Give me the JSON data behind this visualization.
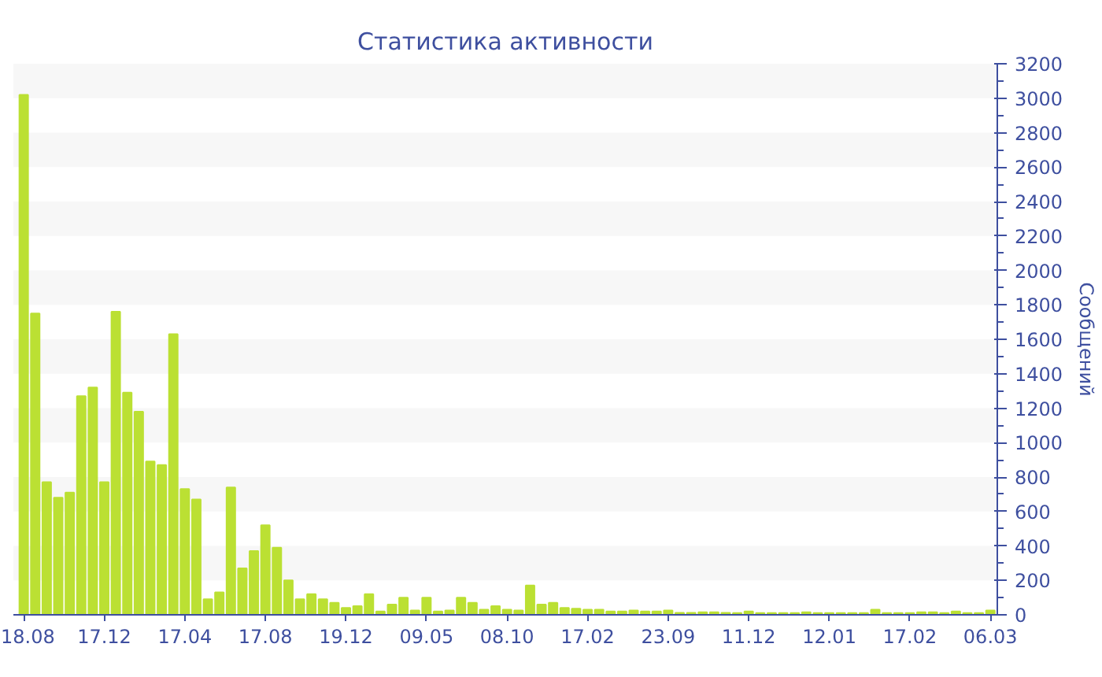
{
  "chart_data": {
    "type": "bar",
    "title": "Статистика активности",
    "ylabel": "Сообщений",
    "categories": [
      "18.08",
      null,
      null,
      null,
      null,
      null,
      null,
      "17.12",
      null,
      null,
      null,
      null,
      null,
      null,
      "17.04",
      null,
      null,
      null,
      null,
      null,
      null,
      "17.08",
      null,
      null,
      null,
      null,
      null,
      null,
      "19.12",
      null,
      null,
      null,
      null,
      null,
      null,
      "09.05",
      null,
      null,
      null,
      null,
      null,
      null,
      "08.10",
      null,
      null,
      null,
      null,
      null,
      null,
      "17.02",
      null,
      null,
      null,
      null,
      null,
      null,
      "23.09",
      null,
      null,
      null,
      null,
      null,
      null,
      "11.12",
      null,
      null,
      null,
      null,
      null,
      null,
      "12.01",
      null,
      null,
      null,
      null,
      null,
      null,
      "17.02",
      null,
      null,
      null,
      null,
      null,
      null,
      "06.03"
    ],
    "values": [
      3020,
      1750,
      770,
      680,
      710,
      1270,
      1320,
      770,
      1760,
      1290,
      1180,
      890,
      870,
      1630,
      730,
      670,
      90,
      130,
      740,
      270,
      370,
      520,
      390,
      200,
      90,
      120,
      90,
      70,
      40,
      50,
      120,
      20,
      60,
      100,
      25,
      100,
      20,
      25,
      100,
      70,
      30,
      50,
      30,
      25,
      170,
      60,
      70,
      40,
      35,
      30,
      30,
      20,
      20,
      25,
      20,
      20,
      25,
      12,
      12,
      15,
      15,
      12,
      10,
      20,
      10,
      10,
      10,
      10,
      15,
      10,
      10,
      10,
      10,
      10,
      30,
      10,
      10,
      10,
      15,
      15,
      10,
      20,
      10,
      10,
      25
    ],
    "color": "#bbe033",
    "ylim": [
      0,
      3200
    ],
    "yticks": [
      0,
      200,
      400,
      600,
      800,
      1000,
      1200,
      1400,
      1600,
      1800,
      2000,
      2200,
      2400,
      2600,
      2800,
      3000,
      3200
    ]
  }
}
